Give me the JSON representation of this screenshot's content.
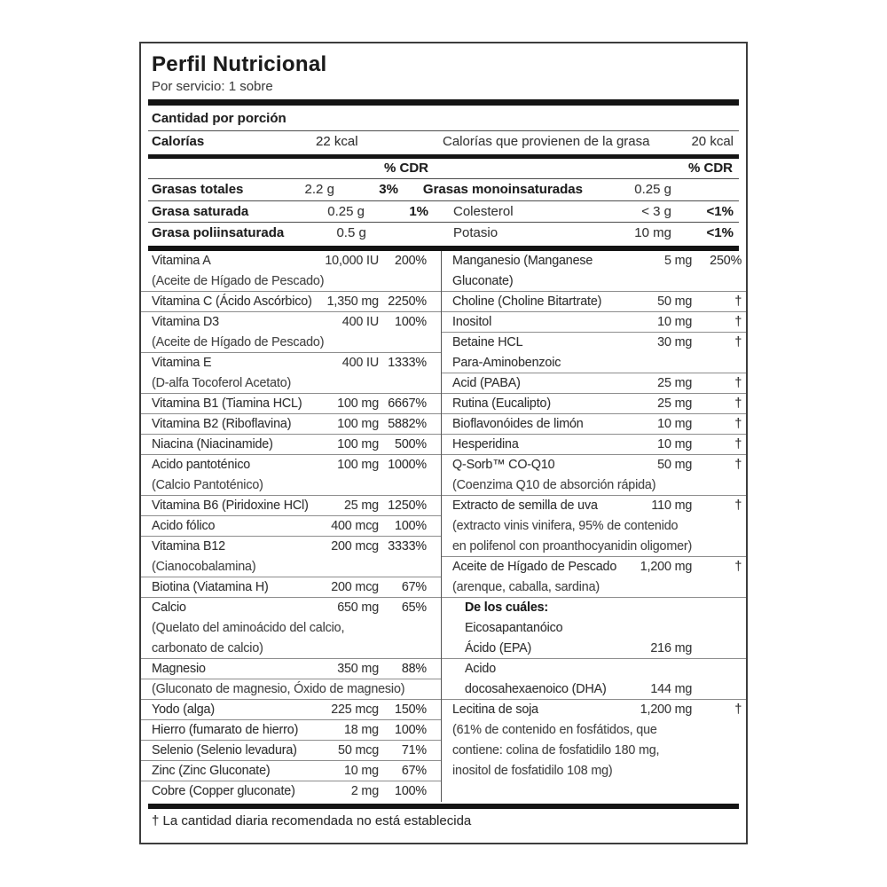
{
  "label": {
    "title": "Perfil Nutricional",
    "serving": "Por servicio: 1 sobre",
    "amount_per_serving": "Cantidad por porción",
    "cdr_header": "% CDR",
    "calories": {
      "label": "Calorías",
      "value": "22 kcal",
      "fat_label": "Calorías que provienen de la grasa",
      "fat_value": "20 kcal"
    },
    "fats_rows": [
      {
        "l_label": "Grasas totales",
        "l_amt": "2.2 g",
        "l_pct": "3%",
        "r_label": "Grasas monoinsaturadas",
        "r_amt": "0.25 g",
        "r_pct": ""
      },
      {
        "l_label": "Grasa saturada",
        "l_amt": "0.25 g",
        "l_pct": "1%",
        "r_label": "Colesterol",
        "r_amt": "< 3 g",
        "r_pct": "<1%"
      },
      {
        "l_label": "Grasa poliinsaturada",
        "l_amt": "0.5 g",
        "l_pct": "",
        "r_label": "Potasio",
        "r_amt": "10 mg",
        "r_pct": "<1%"
      }
    ],
    "left_column": [
      {
        "label": "Vitamina A",
        "amt": "10,000 IU",
        "pct": "200%"
      },
      {
        "label": "(Aceite de Hígado de Pescado)",
        "amt": "",
        "pct": ""
      },
      {
        "label": "Vitamina C (Ácido Ascórbico)",
        "amt": "1,350 mg",
        "pct": "2250%"
      },
      {
        "label": "Vitamina D3",
        "amt": "400 IU",
        "pct": "100%"
      },
      {
        "label": "(Aceite de Hígado de Pescado)",
        "amt": "",
        "pct": ""
      },
      {
        "label": "Vitamina E",
        "amt": "400 IU",
        "pct": "1333%"
      },
      {
        "label": "(D-alfa Tocoferol Acetato)",
        "amt": "",
        "pct": ""
      },
      {
        "label": "Vitamina B1 (Tiamina HCL)",
        "amt": "100 mg",
        "pct": "6667%"
      },
      {
        "label": "Vitamina B2 (Riboflavina)",
        "amt": "100 mg",
        "pct": "5882%"
      },
      {
        "label": "Niacina (Niacinamide)",
        "amt": "100 mg",
        "pct": "500%"
      },
      {
        "label": "Acido pantoténico",
        "amt": "100 mg",
        "pct": "1000%"
      },
      {
        "label": "(Calcio Pantoténico)",
        "amt": "",
        "pct": ""
      },
      {
        "label": "Vitamina B6 (Piridoxine HCl)",
        "amt": "25 mg",
        "pct": "1250%"
      },
      {
        "label": "Acido fólico",
        "amt": "400 mcg",
        "pct": "100%"
      },
      {
        "label": "Vitamina B12",
        "amt": "200 mcg",
        "pct": "3333%"
      },
      {
        "label": "(Cianocobalamina)",
        "amt": "",
        "pct": ""
      },
      {
        "label": "Biotina (Viatamina H)",
        "amt": "200 mcg",
        "pct": "67%"
      },
      {
        "label": "Calcio",
        "amt": "650 mg",
        "pct": "65%"
      },
      {
        "label": "(Quelato del aminoácido del calcio,",
        "amt": "",
        "pct": ""
      },
      {
        "label": "carbonato de calcio)",
        "amt": "",
        "pct": ""
      },
      {
        "label": "Magnesio",
        "amt": "350 mg",
        "pct": "88%"
      },
      {
        "label": "(Gluconato de magnesio, Óxido de magnesio)",
        "amt": "",
        "pct": ""
      },
      {
        "label": "Yodo (alga)",
        "amt": "225 mcg",
        "pct": "150%"
      },
      {
        "label": "Hierro (fumarato de hierro)",
        "amt": "18 mg",
        "pct": "100%"
      },
      {
        "label": "Selenio (Selenio levadura)",
        "amt": "50 mcg",
        "pct": "71%"
      },
      {
        "label": "Zinc (Zinc Gluconate)",
        "amt": "10 mg",
        "pct": "67%"
      },
      {
        "label": "Cobre (Copper gluconate)",
        "amt": "2 mg",
        "pct": "100%"
      }
    ],
    "right_column": [
      {
        "label": "Manganesio (Manganese",
        "amt": "5 mg",
        "pct": "250%"
      },
      {
        "label": "Gluconate)",
        "amt": "",
        "pct": ""
      },
      {
        "label": "Choline (Choline Bitartrate)",
        "amt": "50 mg",
        "pct": "†"
      },
      {
        "label": "Inositol",
        "amt": "10 mg",
        "pct": "†"
      },
      {
        "label": "Betaine HCL",
        "amt": "30 mg",
        "pct": "†"
      },
      {
        "label": "Para-Aminobenzoic",
        "amt": "",
        "pct": ""
      },
      {
        "label": "Acid (PABA)",
        "amt": "25 mg",
        "pct": "†"
      },
      {
        "label": "Rutina (Eucalipto)",
        "amt": "25 mg",
        "pct": "†"
      },
      {
        "label": "Bioflavonóides de limón",
        "amt": "10 mg",
        "pct": "†"
      },
      {
        "label": "Hesperidina",
        "amt": "10 mg",
        "pct": "†"
      },
      {
        "label": "Q-Sorb™ CO-Q10",
        "amt": "50 mg",
        "pct": "†"
      },
      {
        "label": "(Coenzima Q10 de absorción rápida)",
        "amt": "",
        "pct": ""
      },
      {
        "label": "Extracto de semilla de uva",
        "amt": "110 mg",
        "pct": "†"
      },
      {
        "label": "(extracto vinis vinifera, 95% de contenido",
        "amt": "",
        "pct": ""
      },
      {
        "label": "en polifenol con proanthocyanidin oligomer)",
        "amt": "",
        "pct": ""
      },
      {
        "label": "Aceite de Hígado de Pescado",
        "amt": "1,200 mg",
        "pct": "†"
      },
      {
        "label": "(arenque, caballa, sardina)",
        "amt": "",
        "pct": ""
      },
      {
        "label": "De los cuáles:",
        "amt": "",
        "pct": ""
      },
      {
        "label": "Eicosapantanóico",
        "amt": "",
        "pct": ""
      },
      {
        "label": "Ácido (EPA)",
        "amt": "216 mg",
        "pct": ""
      },
      {
        "label": "Acido",
        "amt": "",
        "pct": ""
      },
      {
        "label": "docosahexaenoico (DHA)",
        "amt": "144 mg",
        "pct": ""
      },
      {
        "label": "Lecitina de soja",
        "amt": "1,200 mg",
        "pct": "†"
      },
      {
        "label": "(61% de contenido en fosfátidos, que",
        "amt": "",
        "pct": ""
      },
      {
        "label": "contiene: colina de fosfatidilo 180 mg,",
        "amt": "",
        "pct": ""
      },
      {
        "label": "inositol de fosfatidilo 108 mg)",
        "amt": "",
        "pct": ""
      }
    ],
    "footnote": "† La cantidad diaria recomendada no está establecida"
  }
}
